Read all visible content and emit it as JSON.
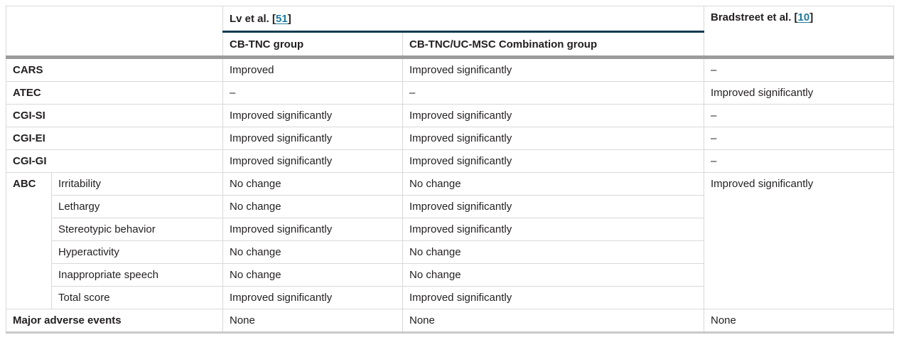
{
  "colors": {
    "link": "#1d7a9c",
    "rule": "#0d3a50",
    "grid": "#d9d9d9",
    "thick_band": "#9b9b9b",
    "text": "#231f20"
  },
  "header": {
    "study1": {
      "prefix": "Lv et al. [",
      "ref": "51",
      "suffix": "]"
    },
    "study2": {
      "prefix": "Bradstreet et al. [",
      "ref": "10",
      "suffix": "]"
    },
    "group_col1": "CB-TNC group",
    "group_col2": "CB-TNC/UC-MSC Combination group"
  },
  "rows": {
    "cars": {
      "label": "CARS",
      "c1": "Improved",
      "c2": "Improved significantly",
      "c3": "–"
    },
    "atec": {
      "label": "ATEC",
      "c1": "–",
      "c2": "–",
      "c3": "Improved significantly"
    },
    "cgi_si": {
      "label": "CGI-SI",
      "c1": "Improved significantly",
      "c2": "Improved significantly",
      "c3": "–"
    },
    "cgi_ei": {
      "label": "CGI-EI",
      "c1": "Improved significantly",
      "c2": "Improved significantly",
      "c3": "–"
    },
    "cgi_gi": {
      "label": "CGI-GI",
      "c1": "Improved significantly",
      "c2": "Improved significantly",
      "c3": "–"
    },
    "abc": {
      "label": "ABC",
      "bradstreet_value": "Improved significantly",
      "items": [
        {
          "sub": "Irritability",
          "c1": "No change",
          "c2": "No change"
        },
        {
          "sub": "Lethargy",
          "c1": "No change",
          "c2": "Improved significantly"
        },
        {
          "sub": "Stereotypic behavior",
          "c1": "Improved significantly",
          "c2": "Improved significantly"
        },
        {
          "sub": "Hyperactivity",
          "c1": "No change",
          "c2": "No change"
        },
        {
          "sub": "Inappropriate speech",
          "c1": "No change",
          "c2": "No change"
        },
        {
          "sub": "Total score",
          "c1": "Improved significantly",
          "c2": "Improved significantly"
        }
      ]
    },
    "adverse": {
      "label": "Major adverse events",
      "c1": "None",
      "c2": "None",
      "c3": "None"
    }
  }
}
